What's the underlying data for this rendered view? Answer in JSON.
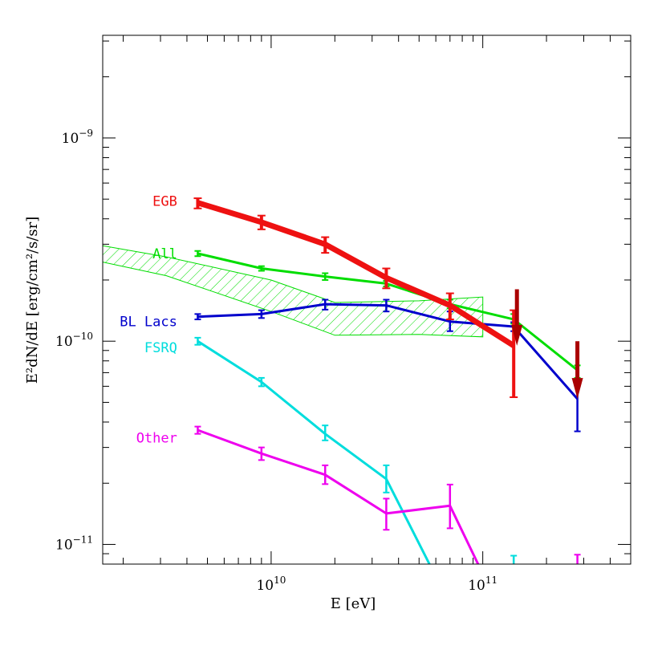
{
  "chart_data": {
    "type": "line",
    "xlabel": "E [eV]",
    "ylabel": "E²dN/dE [erg/cm²/s/sr]",
    "x_scale": "log",
    "y_scale": "log",
    "xlim": [
      1600000000.0,
      500000000000.0
    ],
    "ylim": [
      8e-12,
      3.2e-09
    ],
    "x_ticks": [
      {
        "value": 10000000000.0,
        "base": "10",
        "exp": "10"
      },
      {
        "value": 100000000000.0,
        "base": "10",
        "exp": "11"
      }
    ],
    "y_ticks": [
      {
        "value": 1e-11,
        "base": "10",
        "exp": "−11"
      },
      {
        "value": 1e-10,
        "base": "10",
        "exp": "−10"
      },
      {
        "value": 1e-09,
        "base": "10",
        "exp": "−9"
      }
    ],
    "band": {
      "name": "All",
      "color": "#00dd00",
      "x": [
        1600000000.0,
        3200000000.0,
        10000000000.0,
        20000000000.0,
        50000000000.0,
        100000000000.0
      ],
      "upper": [
        2.95e-10,
        2.6e-10,
        2e-10,
        1.55e-10,
        1.58e-10,
        1.65e-10
      ],
      "lower": [
        2.45e-10,
        2.1e-10,
        1.4e-10,
        1.07e-10,
        1.08e-10,
        1.05e-10
      ]
    },
    "series": [
      {
        "name": "EGB",
        "color": "#ee1111",
        "width": 7,
        "x": [
          4500000000.0,
          9000000000.0,
          18000000000.0,
          35000000000.0,
          70000000000.0,
          140000000000.0
        ],
        "y": [
          4.8e-10,
          3.85e-10,
          3e-10,
          2.05e-10,
          1.5e-10,
          9.5e-11
        ],
        "err_low": [
          4.5e-10,
          3.55e-10,
          2.72e-10,
          1.82e-10,
          1.28e-10,
          5.3e-11
        ],
        "err_high": [
          5.05e-10,
          4.15e-10,
          3.25e-10,
          2.28e-10,
          1.72e-10,
          1.42e-10
        ]
      },
      {
        "name": "All",
        "color": "#00dd00",
        "width": 3,
        "x": [
          4500000000.0,
          9000000000.0,
          18000000000.0,
          35000000000.0,
          70000000000.0,
          140000000000.0,
          280000000000.0
        ],
        "y": [
          2.7e-10,
          2.28e-10,
          2.08e-10,
          1.92e-10,
          1.52e-10,
          1.28e-10,
          7.2e-11
        ],
        "err_low": [
          2.62e-10,
          2.22e-10,
          2e-10,
          1.86e-10,
          1.45e-10,
          1.22e-10,
          6.6e-11
        ],
        "err_high": [
          2.78e-10,
          2.34e-10,
          2.16e-10,
          1.98e-10,
          1.6e-10,
          1.36e-10,
          7.6e-11
        ]
      },
      {
        "name": "BL Lacs",
        "color": "#0000cc",
        "width": 3,
        "x": [
          4500000000.0,
          9000000000.0,
          18000000000.0,
          35000000000.0,
          70000000000.0,
          140000000000.0,
          280000000000.0
        ],
        "y": [
          1.32e-10,
          1.36e-10,
          1.52e-10,
          1.5e-10,
          1.25e-10,
          1.18e-10,
          5.2e-11
        ],
        "err_low": [
          1.28e-10,
          1.3e-10,
          1.43e-10,
          1.4e-10,
          1.12e-10,
          1.12e-10,
          3.6e-11
        ],
        "err_high": [
          1.36e-10,
          1.42e-10,
          1.6e-10,
          1.6e-10,
          1.4e-10,
          1.24e-10,
          6e-11
        ]
      },
      {
        "name": "FSRQ",
        "color": "#00dddd",
        "width": 3,
        "x": [
          4500000000.0,
          9000000000.0,
          18000000000.0,
          35000000000.0,
          56000000000.0
        ],
        "y": [
          1e-10,
          6.3e-11,
          3.5e-11,
          2.1e-11,
          8e-12
        ],
        "err_low": [
          9.6e-11,
          6e-11,
          3.25e-11,
          1.8e-11,
          null
        ],
        "err_high": [
          1.04e-10,
          6.6e-11,
          3.85e-11,
          2.45e-11,
          null
        ]
      },
      {
        "name": "Other",
        "color": "#ee00ee",
        "width": 3,
        "x": [
          4500000000.0,
          9000000000.0,
          18000000000.0,
          35000000000.0,
          70000000000.0,
          95000000000.0
        ],
        "y": [
          3.65e-11,
          2.8e-11,
          2.2e-11,
          1.42e-11,
          1.55e-11,
          8e-12
        ],
        "err_low": [
          3.5e-11,
          2.6e-11,
          1.98e-11,
          1.18e-11,
          1.2e-11,
          null
        ],
        "err_high": [
          3.8e-11,
          3e-11,
          2.45e-11,
          1.68e-11,
          1.97e-11,
          null
        ]
      }
    ],
    "upper_limits": [
      {
        "color": "#aa0000",
        "x": 145000000000.0,
        "y_top": 1.8e-10,
        "y_bottom": 9.5e-11
      },
      {
        "color": "#aa0000",
        "x": 280000000000.0,
        "y_top": 1e-10,
        "y_bottom": 5.2e-11
      }
    ],
    "bottom_markers": [
      {
        "color": "#00dddd",
        "x": 140000000000.0,
        "y_top": 8.8e-12
      },
      {
        "color": "#ee00ee",
        "x": 280000000000.0,
        "y_top": 8.9e-12
      }
    ],
    "labels": [
      {
        "text": "EGB",
        "color": "#ee1111",
        "x": 3600000000.0,
        "y": 4.9e-10
      },
      {
        "text": "All",
        "color": "#00dd00",
        "x": 3600000000.0,
        "y": 2.7e-10
      },
      {
        "text": "BL Lacs",
        "color": "#0000cc",
        "x": 3600000000.0,
        "y": 1.25e-10
      },
      {
        "text": "FSRQ",
        "color": "#00dddd",
        "x": 3600000000.0,
        "y": 9.3e-11
      },
      {
        "text": "Other",
        "color": "#ee00ee",
        "x": 3600000000.0,
        "y": 3.35e-11
      }
    ]
  }
}
